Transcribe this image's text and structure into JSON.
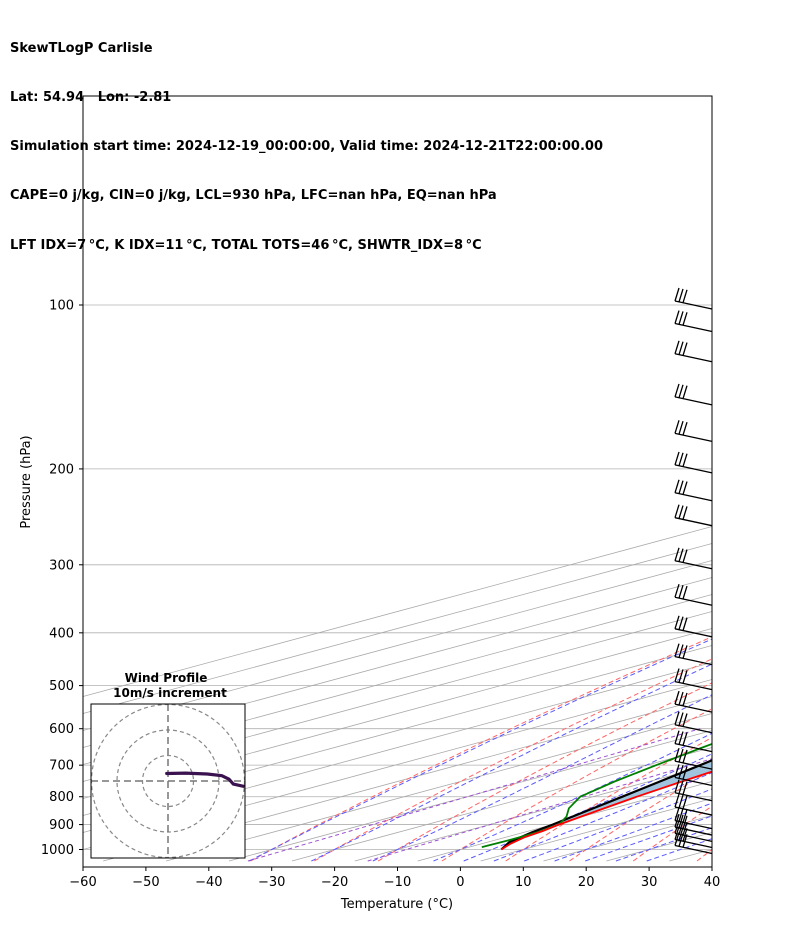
{
  "header": {
    "line1": "SkewTLogP Carlisle",
    "line2": "Lat: 54.94   Lon: -2.81",
    "line3": "Simulation start time: 2024-12-19_00:00:00, Valid time: 2024-12-21T22:00:00.00",
    "line4": "CAPE=0 j/kg, CIN=0 j/kg, LCL=930 hPa, LFC=nan hPa, EQ=nan hPa",
    "line5": "LFT IDX=7 °C, K IDX=11 °C, TOTAL TOTS=46 °C, SHWTR_IDX=8 °C"
  },
  "inset": {
    "title": "Wind Profile",
    "subtitle": "10m/s increment",
    "rings_ms": [
      10,
      20,
      30
    ]
  },
  "colors": {
    "temperature": "#ff0000",
    "dewpoint": "#008000",
    "parcel": "#000000",
    "shade": "#a1c4de",
    "dry_adiabat": "#ff6666",
    "moist_adiabat": "#5a5aff",
    "mixing_ratio": "#9b4fd1",
    "isotherm": "#aaaaaa",
    "hodograph": "#3b1250"
  },
  "chart_data": {
    "type": "line",
    "title": "SkewTLogP Carlisle",
    "xlabel": "Temperature (°C)",
    "ylabel": "Pressure (hPa)",
    "xlim": [
      -60,
      40
    ],
    "ylim": [
      1050,
      100
    ],
    "yscale": "log",
    "skew": true,
    "grid": true,
    "x_ticks": [
      -60,
      -50,
      -40,
      -30,
      -20,
      -10,
      0,
      10,
      20,
      30,
      40
    ],
    "x_tick_labels": [
      "−60",
      "−50",
      "−40",
      "−30",
      "−20",
      "−10",
      "0",
      "10",
      "20",
      "30",
      "40"
    ],
    "y_ticks": [
      100,
      200,
      300,
      400,
      500,
      600,
      700,
      800,
      900,
      1000
    ],
    "series": [
      {
        "name": "temperature",
        "points": [
          [
            1000,
            6.5
          ],
          [
            975,
            4.5
          ],
          [
            950,
            3.0
          ],
          [
            925,
            2.2
          ],
          [
            900,
            1.0
          ],
          [
            850,
            -1.0
          ],
          [
            800,
            -3.0
          ],
          [
            750,
            -4.8
          ],
          [
            700,
            -6.5
          ],
          [
            650,
            -8.5
          ],
          [
            600,
            -11.3
          ],
          [
            550,
            -15.0
          ],
          [
            500,
            -19.0
          ],
          [
            450,
            -23.5
          ],
          [
            400,
            -29.5
          ],
          [
            350,
            -36.5
          ],
          [
            330,
            -38.5
          ],
          [
            300,
            -39.5
          ],
          [
            270,
            -39.0
          ],
          [
            250,
            -38.5
          ],
          [
            220,
            -38.0
          ],
          [
            200,
            -38.0
          ],
          [
            180,
            -40.0
          ],
          [
            160,
            -43.0
          ],
          [
            140,
            -46.5
          ],
          [
            120,
            -49.5
          ],
          [
            110,
            -51.5
          ],
          [
            100,
            -54.5
          ]
        ]
      },
      {
        "name": "dewpoint",
        "points": [
          [
            990,
            2.0
          ],
          [
            960,
            2.3
          ],
          [
            930,
            2.2
          ],
          [
            900,
            1.0
          ],
          [
            870,
            -2.5
          ],
          [
            840,
            -7.0
          ],
          [
            800,
            -12.0
          ],
          [
            750,
            -15.5
          ],
          [
            700,
            -18.5
          ],
          [
            650,
            -21.5
          ],
          [
            600,
            -24.5
          ],
          [
            550,
            -30.0
          ],
          [
            500,
            -38.5
          ],
          [
            470,
            -40.0
          ],
          [
            450,
            -39.5
          ],
          [
            400,
            -41.5
          ],
          [
            350,
            -44.5
          ],
          [
            300,
            -48.5
          ],
          [
            270,
            -52.0
          ],
          [
            240,
            -56.5
          ],
          [
            220,
            -60.0
          ],
          [
            200,
            -63.0
          ],
          [
            180,
            -66.5
          ],
          [
            160,
            -70.0
          ],
          [
            140,
            -73.0
          ],
          [
            120,
            -74.5
          ],
          [
            100,
            -77.0
          ]
        ]
      },
      {
        "name": "parcel",
        "points": [
          [
            1000,
            6.5
          ],
          [
            970,
            3.5
          ],
          [
            930,
            1.3
          ],
          [
            900,
            0.0
          ],
          [
            850,
            -2.6
          ],
          [
            800,
            -5.3
          ],
          [
            750,
            -8.3
          ],
          [
            700,
            -11.5
          ],
          [
            650,
            -15.0
          ],
          [
            600,
            -19.0
          ],
          [
            550,
            -23.5
          ],
          [
            500,
            -28.5
          ],
          [
            450,
            -34.2
          ],
          [
            400,
            -40.5
          ],
          [
            350,
            -47.5
          ],
          [
            300,
            -55.5
          ],
          [
            250,
            -64.5
          ],
          [
            200,
            -75.0
          ],
          [
            150,
            -87.5
          ],
          [
            120,
            -96.5
          ],
          [
            100,
            -103.5
          ]
        ]
      }
    ],
    "wind_barbs_hpa": [
      1000,
      975,
      950,
      925,
      900,
      850,
      800,
      750,
      700,
      650,
      600,
      550,
      500,
      450,
      400,
      350,
      300,
      250,
      225,
      200,
      175,
      150,
      125,
      110,
      100
    ],
    "hodograph_uv": [
      [
        -2.3,
        1.7
      ],
      [
        -1.0,
        1.8
      ],
      [
        0.5,
        1.6
      ],
      [
        1.5,
        1.2
      ],
      [
        2.0,
        0.4
      ],
      [
        2.3,
        -0.7
      ],
      [
        3.0,
        -1.2
      ]
    ]
  }
}
